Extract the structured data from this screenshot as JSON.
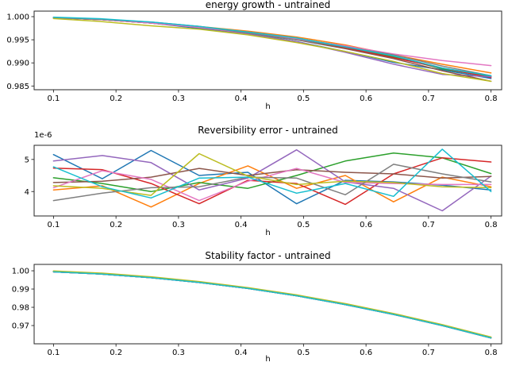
{
  "figure": {
    "background": "#ffffff",
    "spine_color": "#262626",
    "text_color": "#000000"
  },
  "chart_data": [
    {
      "type": "line",
      "title": "energy growth - untrained",
      "xlabel": "h",
      "ylabel": "",
      "grid": false,
      "legend": "none",
      "x": [
        0.1,
        0.178,
        0.256,
        0.333,
        0.411,
        0.489,
        0.567,
        0.644,
        0.722,
        0.8
      ],
      "xlim": [
        0.069,
        0.817
      ],
      "ylim": [
        0.9842,
        1.0012
      ],
      "xticks": [
        0.1,
        0.2,
        0.3,
        0.4,
        0.5,
        0.6,
        0.7,
        0.8
      ],
      "xtick_labels": [
        "0.1",
        "0.2",
        "0.3",
        "0.4",
        "0.5",
        "0.6",
        "0.7",
        "0.8"
      ],
      "yticks": [
        1.0,
        0.995,
        0.99,
        0.985
      ],
      "ytick_labels": [
        "1.000",
        "0.995",
        "0.990",
        "0.985"
      ],
      "series": [
        {
          "name": "blue",
          "color": "#1f77b4",
          "values": [
            0.99979,
            0.99934,
            0.99863,
            0.99748,
            0.99617,
            0.9946,
            0.99248,
            0.99013,
            0.98851,
            0.98662
          ]
        },
        {
          "name": "orange",
          "color": "#ff7f0e",
          "values": [
            0.99979,
            0.99934,
            0.99868,
            0.99788,
            0.99687,
            0.9956,
            0.99388,
            0.99173,
            0.98971,
            0.98782
          ]
        },
        {
          "name": "green",
          "color": "#2ca02c",
          "values": [
            0.99979,
            0.99934,
            0.99863,
            0.99768,
            0.99627,
            0.995,
            0.99348,
            0.99133,
            0.98871,
            0.98702
          ]
        },
        {
          "name": "red",
          "color": "#d62728",
          "values": [
            0.99979,
            0.99934,
            0.99863,
            0.99768,
            0.99667,
            0.9952,
            0.99328,
            0.99113,
            0.98891,
            0.98682
          ]
        },
        {
          "name": "purple",
          "color": "#9467bd",
          "values": [
            0.99979,
            0.99934,
            0.99863,
            0.99768,
            0.99627,
            0.9946,
            0.99228,
            0.98973,
            0.98751,
            0.98702
          ]
        },
        {
          "name": "brown",
          "color": "#8c564b",
          "values": [
            0.99979,
            0.99934,
            0.99863,
            0.99768,
            0.99647,
            0.995,
            0.99308,
            0.99093,
            0.98831,
            0.98602
          ]
        },
        {
          "name": "pink",
          "color": "#e377c2",
          "values": [
            0.99979,
            0.99934,
            0.99863,
            0.99768,
            0.99647,
            0.9952,
            0.99368,
            0.99193,
            0.99051,
            0.98942
          ]
        },
        {
          "name": "gray",
          "color": "#7f7f7f",
          "values": [
            0.99979,
            0.99939,
            0.99883,
            0.99788,
            0.99647,
            0.995,
            0.99348,
            0.99173,
            0.98931,
            0.98722
          ]
        },
        {
          "name": "olive",
          "color": "#bcbd22",
          "values": [
            0.99959,
            0.99894,
            0.99803,
            0.99728,
            0.99607,
            0.9944,
            0.99248,
            0.99033,
            0.98771,
            0.98602
          ]
        },
        {
          "name": "cyan",
          "color": "#17becf",
          "values": [
            0.99989,
            0.99954,
            0.99883,
            0.99788,
            0.99667,
            0.9954,
            0.99348,
            0.99153,
            0.98891,
            0.98722
          ]
        }
      ]
    },
    {
      "type": "line",
      "title": "Reversibility error - untrained",
      "xlabel": "h",
      "ylabel": "",
      "grid": false,
      "legend": "none",
      "y_offset_label": "1e-6",
      "y_unit": "1e-6",
      "x": [
        0.1,
        0.178,
        0.256,
        0.333,
        0.411,
        0.489,
        0.567,
        0.644,
        0.722,
        0.8
      ],
      "xlim": [
        0.069,
        0.817
      ],
      "ylim": [
        3.24,
        5.44
      ],
      "xticks": [
        0.1,
        0.2,
        0.3,
        0.4,
        0.5,
        0.6,
        0.7,
        0.8
      ],
      "xtick_labels": [
        "0.1",
        "0.2",
        "0.3",
        "0.4",
        "0.5",
        "0.6",
        "0.7",
        "0.8"
      ],
      "yticks": [
        5,
        4
      ],
      "ytick_labels": [
        "5",
        "4"
      ],
      "series": [
        {
          "name": "blue",
          "color": "#1f77b4",
          "values": [
            5.15,
            4.4,
            5.28,
            4.5,
            4.6,
            3.62,
            4.35,
            4.3,
            4.2,
            4.05
          ]
        },
        {
          "name": "orange",
          "color": "#ff7f0e",
          "values": [
            4.05,
            4.18,
            3.52,
            4.25,
            4.8,
            4.1,
            4.5,
            3.68,
            4.45,
            4.15
          ]
        },
        {
          "name": "green",
          "color": "#2ca02c",
          "values": [
            4.43,
            4.25,
            4.0,
            4.28,
            4.1,
            4.5,
            4.95,
            5.2,
            5.05,
            4.56
          ]
        },
        {
          "name": "red",
          "color": "#d62728",
          "values": [
            4.73,
            4.68,
            4.25,
            3.62,
            4.35,
            4.25,
            3.6,
            4.55,
            5.05,
            4.92
          ]
        },
        {
          "name": "purple",
          "color": "#9467bd",
          "values": [
            4.95,
            5.12,
            4.9,
            4.05,
            4.42,
            5.3,
            4.3,
            4.1,
            3.4,
            4.48
          ]
        },
        {
          "name": "brown",
          "color": "#8c564b",
          "values": [
            4.28,
            4.32,
            4.45,
            4.72,
            4.5,
            4.68,
            4.6,
            4.55,
            4.42,
            4.47
          ]
        },
        {
          "name": "pink",
          "color": "#e377c2",
          "values": [
            4.12,
            4.65,
            4.38,
            3.72,
            4.32,
            4.72,
            4.28,
            4.25,
            4.22,
            4.22
          ]
        },
        {
          "name": "gray",
          "color": "#7f7f7f",
          "values": [
            3.72,
            3.95,
            4.12,
            4.15,
            4.45,
            4.42,
            3.9,
            4.85,
            4.55,
            4.3
          ]
        },
        {
          "name": "olive",
          "color": "#bcbd22",
          "values": [
            4.18,
            4.1,
            3.88,
            5.18,
            4.48,
            4.22,
            4.32,
            4.28,
            4.15,
            4.12
          ]
        },
        {
          "name": "cyan",
          "color": "#17becf",
          "values": [
            4.77,
            4.15,
            3.8,
            4.42,
            4.45,
            3.95,
            4.25,
            3.85,
            5.32,
            4.0
          ]
        }
      ]
    },
    {
      "type": "line",
      "title": "Stability factor - untrained",
      "xlabel": "h",
      "ylabel": "",
      "grid": false,
      "legend": "none",
      "x": [
        0.1,
        0.178,
        0.256,
        0.333,
        0.411,
        0.489,
        0.567,
        0.644,
        0.722,
        0.8
      ],
      "xlim": [
        0.069,
        0.817
      ],
      "ylim": [
        0.96,
        1.0035
      ],
      "xticks": [
        0.1,
        0.2,
        0.3,
        0.4,
        0.5,
        0.6,
        0.7,
        0.8
      ],
      "xtick_labels": [
        "0.1",
        "0.2",
        "0.3",
        "0.4",
        "0.5",
        "0.6",
        "0.7",
        "0.8"
      ],
      "yticks": [
        1.0,
        0.99,
        0.98,
        0.97
      ],
      "ytick_labels": [
        "1.00",
        "0.99",
        "0.98",
        "0.97"
      ],
      "series": [
        {
          "name": "blue",
          "color": "#1f77b4",
          "values": [
            0.9994,
            0.9982,
            0.9962,
            0.9936,
            0.9903,
            0.9863,
            0.9815,
            0.9761,
            0.97,
            0.9632
          ]
        },
        {
          "name": "orange",
          "color": "#ff7f0e",
          "values": [
            0.9994,
            0.9982,
            0.9962,
            0.9936,
            0.9903,
            0.9863,
            0.9815,
            0.9761,
            0.97,
            0.9632
          ]
        },
        {
          "name": "green",
          "color": "#2ca02c",
          "values": [
            0.9994,
            0.9982,
            0.9962,
            0.9936,
            0.9903,
            0.9863,
            0.9815,
            0.9761,
            0.97,
            0.9632
          ]
        },
        {
          "name": "red",
          "color": "#d62728",
          "values": [
            0.9994,
            0.9982,
            0.9962,
            0.9936,
            0.9903,
            0.9863,
            0.9815,
            0.9761,
            0.97,
            0.9632
          ]
        },
        {
          "name": "purple",
          "color": "#9467bd",
          "values": [
            0.9994,
            0.9982,
            0.9962,
            0.9936,
            0.9903,
            0.9863,
            0.9815,
            0.9761,
            0.97,
            0.9632
          ]
        },
        {
          "name": "brown",
          "color": "#8c564b",
          "values": [
            0.9997,
            0.9985,
            0.9965,
            0.9939,
            0.9906,
            0.9866,
            0.9818,
            0.9764,
            0.9703,
            0.9635
          ]
        },
        {
          "name": "pink",
          "color": "#e377c2",
          "values": [
            0.9994,
            0.9982,
            0.9962,
            0.9936,
            0.9903,
            0.9863,
            0.9815,
            0.9761,
            0.97,
            0.9632
          ]
        },
        {
          "name": "gray",
          "color": "#7f7f7f",
          "values": [
            0.9994,
            0.9982,
            0.9962,
            0.9936,
            0.9903,
            0.9863,
            0.9815,
            0.9761,
            0.97,
            0.9632
          ]
        },
        {
          "name": "olive",
          "color": "#bcbd22",
          "values": [
            0.9999,
            0.9987,
            0.9967,
            0.9941,
            0.9908,
            0.9868,
            0.982,
            0.9766,
            0.9705,
            0.9637
          ]
        },
        {
          "name": "cyan",
          "color": "#17becf",
          "values": [
            0.9994,
            0.9982,
            0.9962,
            0.9936,
            0.9903,
            0.9863,
            0.9815,
            0.9761,
            0.97,
            0.9632
          ]
        }
      ]
    }
  ]
}
